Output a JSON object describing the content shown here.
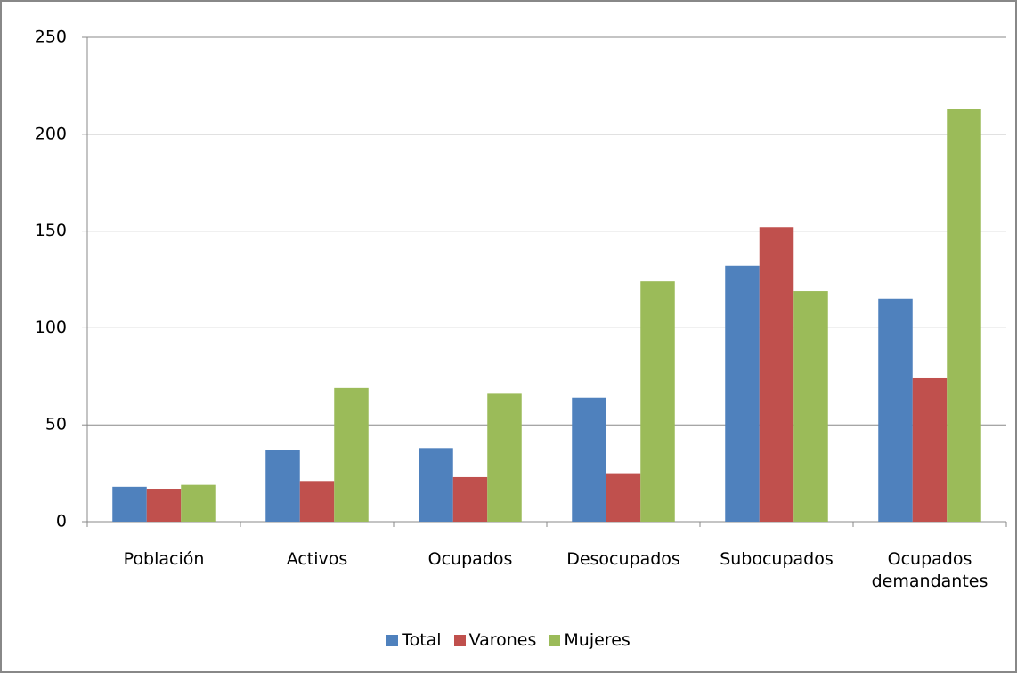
{
  "chart_data": {
    "type": "bar",
    "categories": [
      "Población",
      "Activos",
      "Ocupados",
      "Desocupados",
      "Subocupados",
      "Ocupados demandantes"
    ],
    "series": [
      {
        "name": "Total",
        "color": "#4f81bd",
        "values": [
          18,
          37,
          38,
          64,
          132,
          115
        ]
      },
      {
        "name": "Varones",
        "color": "#c0504d",
        "values": [
          17,
          21,
          23,
          25,
          152,
          74
        ]
      },
      {
        "name": "Mujeres",
        "color": "#9bbb59",
        "values": [
          19,
          69,
          66,
          124,
          119,
          213
        ]
      }
    ],
    "ylim": [
      0,
      250
    ],
    "yticks": [
      0,
      50,
      100,
      150,
      200,
      250
    ],
    "grid": true,
    "legend": "bottom"
  }
}
